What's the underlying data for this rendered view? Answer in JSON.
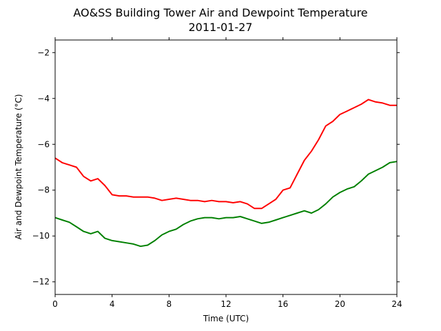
{
  "chart_data": {
    "type": "line",
    "title": "AO&SS Building Tower Air and Dewpoint Temperature",
    "subtitle": "2011-01-27",
    "xlabel": "Time (UTC)",
    "ylabel": "Air and Dewpoint Temperature (°C)",
    "xlim": [
      0,
      24
    ],
    "ylim": [
      -12.55,
      -1.45
    ],
    "xticks": [
      0,
      4,
      8,
      12,
      16,
      20,
      24
    ],
    "xtick_labels": [
      "0",
      "4",
      "8",
      "12",
      "16",
      "20",
      "24"
    ],
    "yticks": [
      -12,
      -10,
      -8,
      -6,
      -4,
      -2
    ],
    "ytick_labels": [
      "−12",
      "−10",
      "−8",
      "−6",
      "−4",
      "−2"
    ],
    "grid": false,
    "series": [
      {
        "color": "#ff0000",
        "x": [
          0,
          0.5,
          1,
          1.5,
          2,
          2.5,
          3,
          3.5,
          4,
          4.5,
          5,
          5.5,
          6,
          6.5,
          7,
          7.5,
          8,
          8.5,
          9,
          9.5,
          10,
          10.5,
          11,
          11.5,
          12,
          12.5,
          13,
          13.5,
          14,
          14.5,
          15,
          15.5,
          16,
          16.5,
          17,
          17.5,
          18,
          18.5,
          19,
          19.5,
          20,
          20.5,
          21,
          21.5,
          22,
          22.5,
          23,
          23.5,
          24
        ],
        "values": [
          -6.6,
          -6.8,
          -6.9,
          -7.0,
          -7.4,
          -7.6,
          -7.5,
          -7.8,
          -8.2,
          -8.25,
          -8.25,
          -8.3,
          -8.3,
          -8.3,
          -8.35,
          -8.45,
          -8.4,
          -8.35,
          -8.4,
          -8.45,
          -8.45,
          -8.5,
          -8.45,
          -8.5,
          -8.5,
          -8.55,
          -8.5,
          -8.6,
          -8.8,
          -8.8,
          -8.6,
          -8.4,
          -8.0,
          -7.9,
          -7.3,
          -6.7,
          -6.3,
          -5.8,
          -5.2,
          -5.0,
          -4.7,
          -4.55,
          -4.4,
          -4.25,
          -4.05,
          -4.15,
          -4.2,
          -4.3,
          -4.3
        ]
      },
      {
        "color": "#008000",
        "x": [
          0,
          0.5,
          1,
          1.5,
          2,
          2.5,
          3,
          3.5,
          4,
          4.5,
          5,
          5.5,
          6,
          6.5,
          7,
          7.5,
          8,
          8.5,
          9,
          9.5,
          10,
          10.5,
          11,
          11.5,
          12,
          12.5,
          13,
          13.5,
          14,
          14.5,
          15,
          15.5,
          16,
          16.5,
          17,
          17.5,
          18,
          18.5,
          19,
          19.5,
          20,
          20.5,
          21,
          21.5,
          22,
          22.5,
          23,
          23.5,
          24
        ],
        "values": [
          -9.2,
          -9.3,
          -9.4,
          -9.6,
          -9.8,
          -9.9,
          -9.8,
          -10.1,
          -10.2,
          -10.25,
          -10.3,
          -10.35,
          -10.45,
          -10.4,
          -10.2,
          -9.95,
          -9.8,
          -9.7,
          -9.5,
          -9.35,
          -9.25,
          -9.2,
          -9.2,
          -9.25,
          -9.2,
          -9.2,
          -9.15,
          -9.25,
          -9.35,
          -9.45,
          -9.4,
          -9.3,
          -9.2,
          -9.1,
          -9.0,
          -8.9,
          -9.0,
          -8.85,
          -8.6,
          -8.3,
          -8.1,
          -7.95,
          -7.85,
          -7.6,
          -7.3,
          -7.15,
          -7.0,
          -6.8,
          -6.75
        ]
      }
    ]
  }
}
